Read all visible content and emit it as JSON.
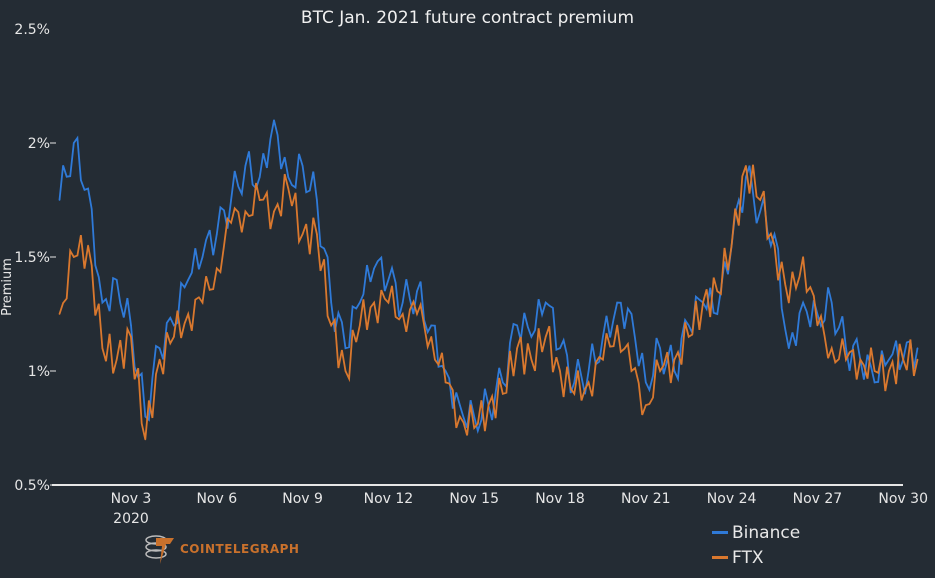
{
  "chart_data": {
    "type": "line",
    "title": "BTC Jan. 2021 future contract premium",
    "ylabel": "Premium",
    "xlabel": "",
    "ylim": [
      0.5,
      2.5
    ],
    "yticks": [
      "0.5%",
      "1%",
      "1.5%",
      "2%",
      "2.5%"
    ],
    "xticks": [
      "Nov 3",
      "Nov 6",
      "Nov 9",
      "Nov 12",
      "Nov 15",
      "Nov 18",
      "Nov 21",
      "Nov 24",
      "Nov 27",
      "Nov 30"
    ],
    "xtick_year": "2020",
    "x_start": "2020-10-31T12:00",
    "x_step_hours": 12,
    "grid": false,
    "legend_position": "bottom-right",
    "series": [
      {
        "name": "Binance",
        "color": "#2f7ad8",
        "values": [
          1.75,
          2.0,
          1.8,
          1.3,
          1.4,
          1.2,
          0.8,
          1.1,
          1.2,
          1.4,
          1.5,
          1.6,
          1.75,
          1.9,
          1.85,
          2.1,
          1.85,
          1.9,
          1.75,
          1.3,
          1.1,
          1.3,
          1.45,
          1.4,
          1.3,
          1.35,
          1.2,
          1.0,
          0.85,
          0.8,
          0.85,
          0.95,
          1.2,
          1.15,
          1.3,
          1.1,
          0.95,
          1.0,
          1.15,
          1.3,
          1.25,
          0.95,
          1.1,
          1.0,
          1.2,
          1.3,
          1.25,
          1.55,
          1.85,
          1.7,
          1.6,
          1.1,
          1.3,
          1.25,
          1.3,
          1.1,
          1.05,
          0.95,
          1.05,
          1.05,
          1.1
        ]
      },
      {
        "name": "FTX",
        "color": "#d9782e",
        "values": [
          1.25,
          1.5,
          1.55,
          1.1,
          1.05,
          1.15,
          0.7,
          1.05,
          1.15,
          1.25,
          1.3,
          1.45,
          1.65,
          1.7,
          1.75,
          1.7,
          1.8,
          1.6,
          1.6,
          1.2,
          1.0,
          1.2,
          1.3,
          1.3,
          1.25,
          1.25,
          1.15,
          0.95,
          0.8,
          0.75,
          0.85,
          0.9,
          1.1,
          1.05,
          1.15,
          1.0,
          0.9,
          0.95,
          1.05,
          1.2,
          1.0,
          0.85,
          1.0,
          1.05,
          1.15,
          1.3,
          1.35,
          1.55,
          1.9,
          1.75,
          1.55,
          1.3,
          1.5,
          1.2,
          1.1,
          1.05,
          1.05,
          1.0,
          1.0,
          1.05,
          1.05
        ]
      }
    ]
  },
  "brand": {
    "logo_text": "COINTELEGRAPH"
  }
}
